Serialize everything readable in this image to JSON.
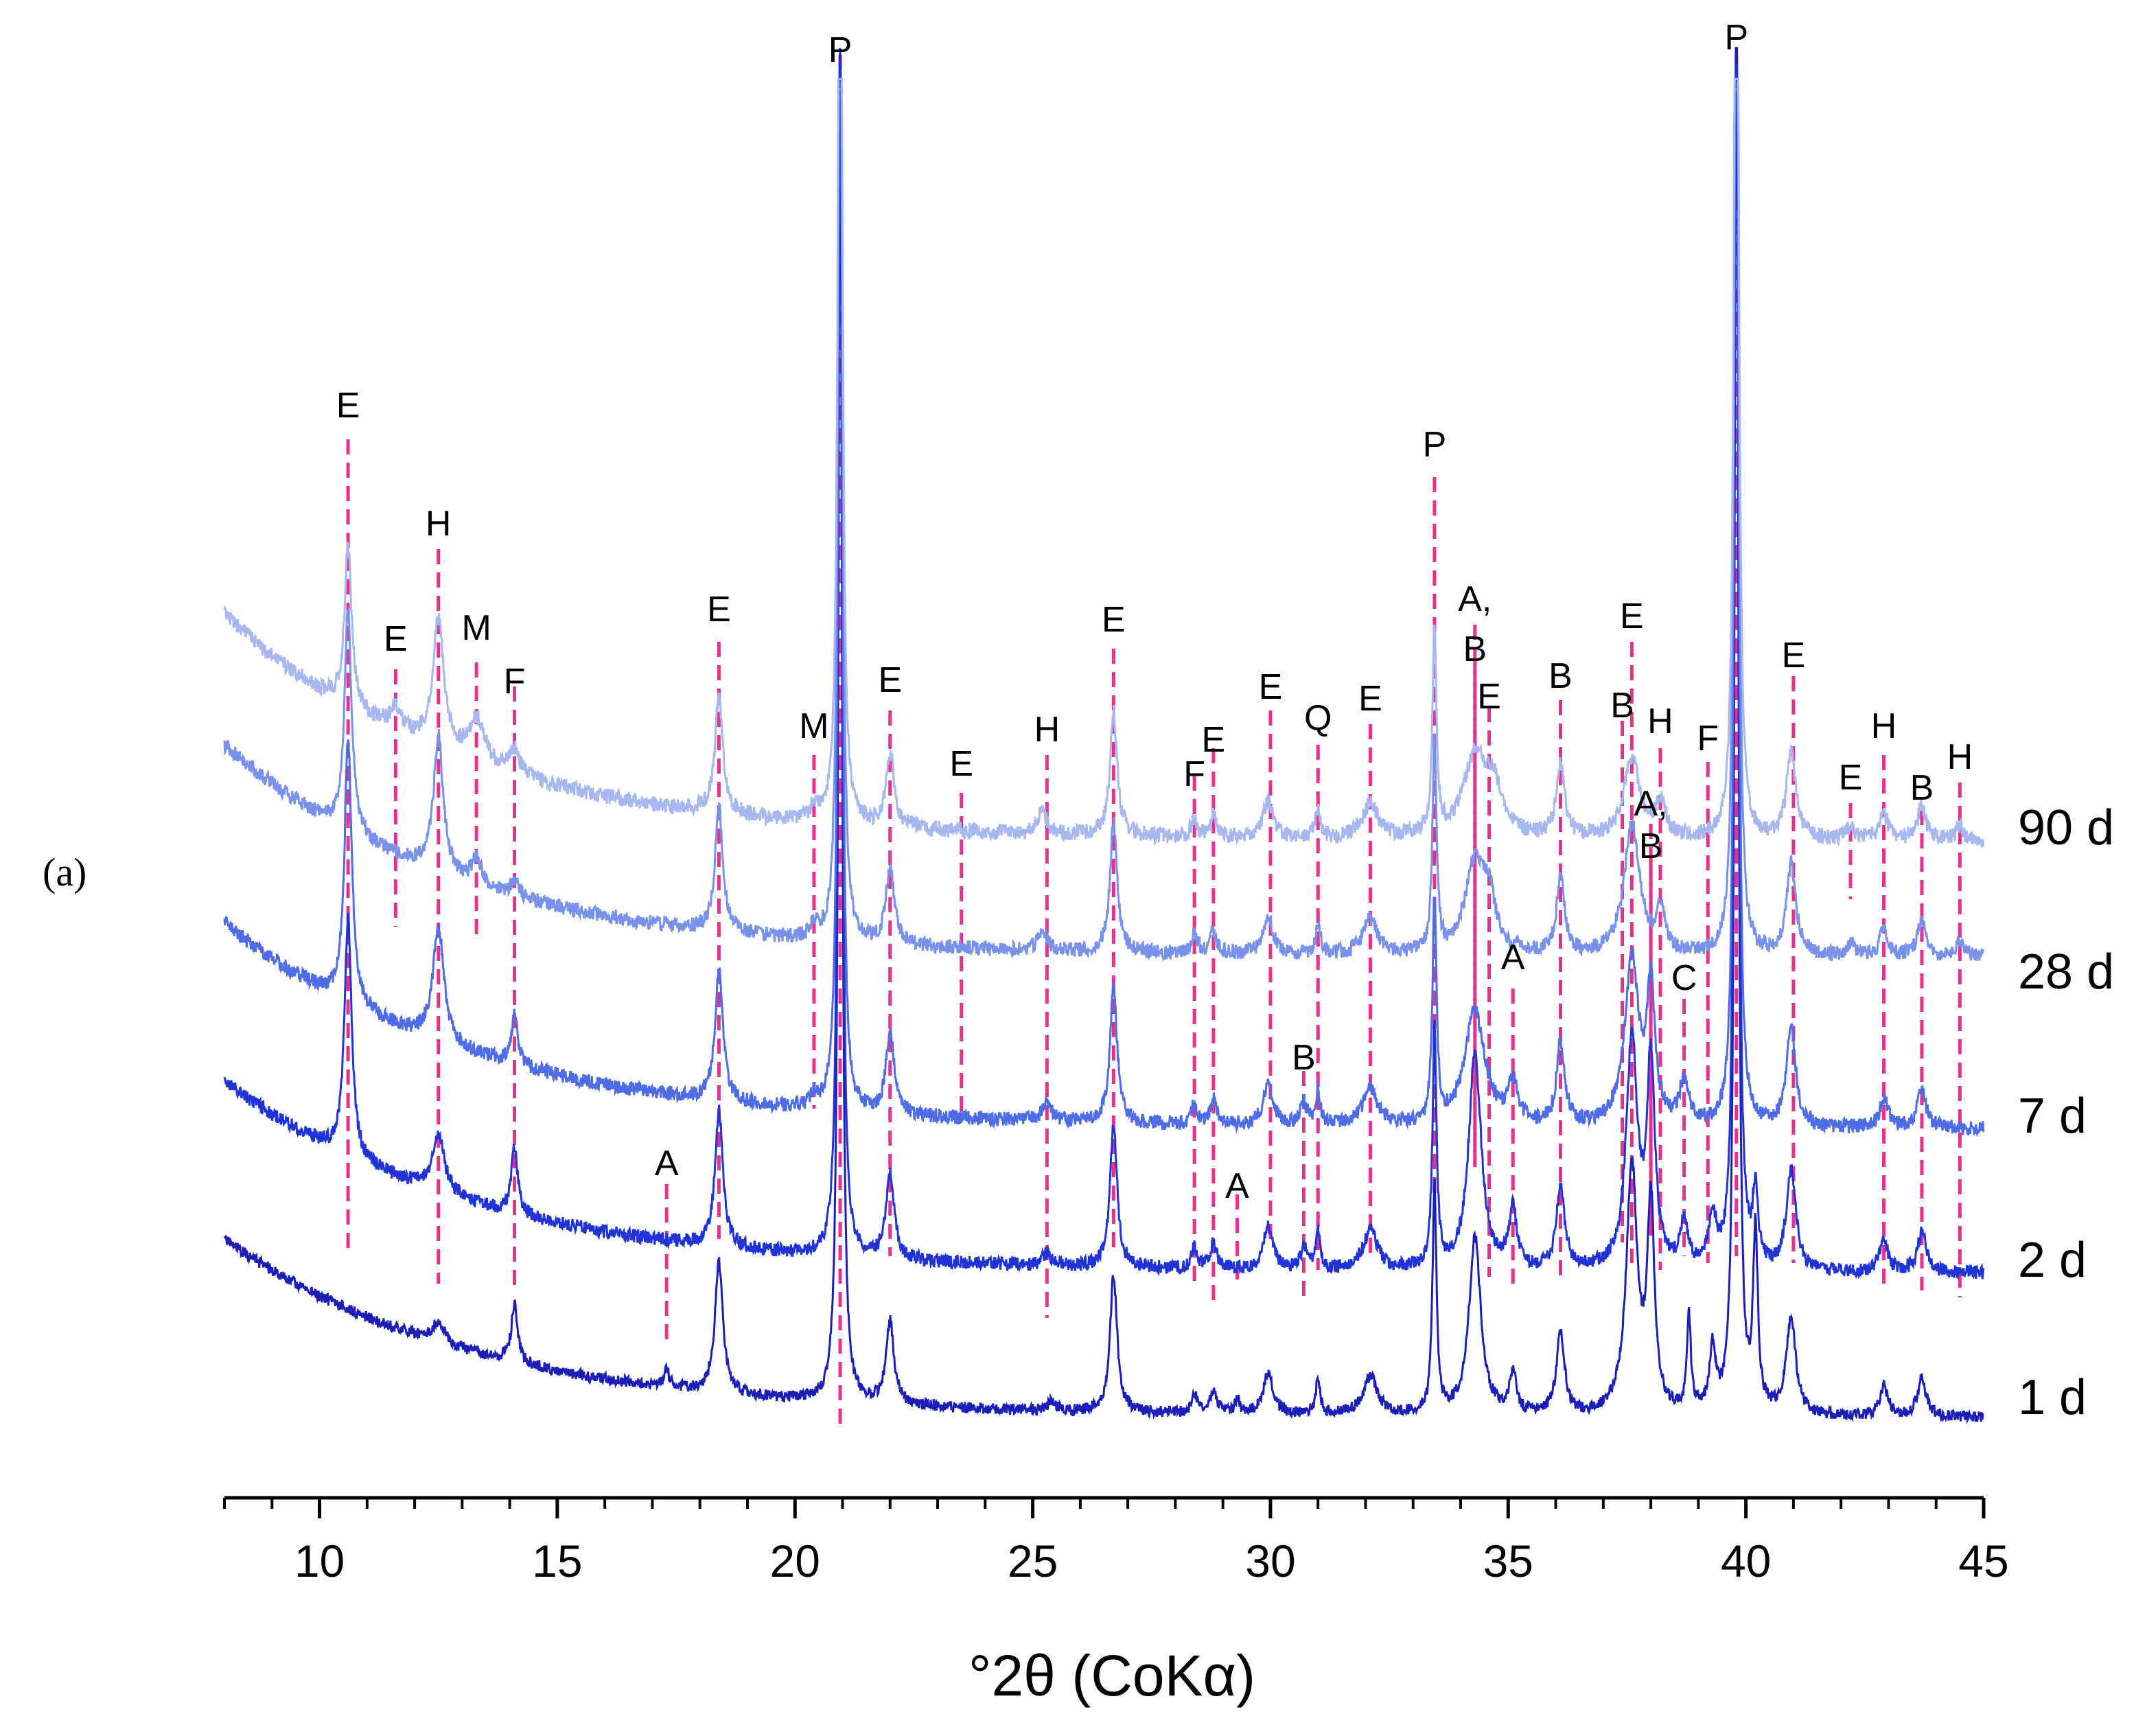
{
  "chart_data": {
    "type": "line",
    "panel_label": "(a)",
    "xlabel": "°2θ (CoKα)",
    "ylabel": "",
    "xlim": [
      8,
      45
    ],
    "x_ticks": [
      10,
      15,
      20,
      25,
      30,
      35,
      40,
      45
    ],
    "grid": false,
    "colors": {
      "marker_line": "#e8308c",
      "axis": "#000000"
    },
    "series": [
      {
        "name": "1 d",
        "color": "#1b1fb8",
        "seed": 11,
        "noise": 0.9
      },
      {
        "name": "2 d",
        "color": "#1f33d6",
        "seed": 23,
        "noise": 1.1
      },
      {
        "name": "7 d",
        "color": "#4d6ce6",
        "seed": 37,
        "noise": 1.2
      },
      {
        "name": "28 d",
        "color": "#7891ea",
        "seed": 41,
        "noise": 1.2
      },
      {
        "name": "90 d",
        "color": "#a7b8f0",
        "seed": 53,
        "noise": 1.3
      }
    ],
    "peak_markers": [
      {
        "label": "E",
        "x": 10.6
      },
      {
        "label": "E",
        "x": 11.6
      },
      {
        "label": "H",
        "x": 12.5
      },
      {
        "label": "M",
        "x": 13.3
      },
      {
        "label": "F",
        "x": 14.1
      },
      {
        "label": "A",
        "x": 17.3
      },
      {
        "label": "E",
        "x": 18.4
      },
      {
        "label": "M",
        "x": 20.4
      },
      {
        "label": "P",
        "x": 20.95
      },
      {
        "label": "E",
        "x": 22.0
      },
      {
        "label": "E",
        "x": 23.5
      },
      {
        "label": "H",
        "x": 25.3
      },
      {
        "label": "E",
        "x": 26.7
      },
      {
        "label": "F",
        "x": 28.4
      },
      {
        "label": "E",
        "x": 28.8
      },
      {
        "label": "A",
        "x": 29.3
      },
      {
        "label": "B",
        "x": 30.7
      },
      {
        "label": "E",
        "x": 30.0
      },
      {
        "label": "Q",
        "x": 31.0
      },
      {
        "label": "E",
        "x": 32.1
      },
      {
        "label": "P",
        "x": 33.45
      },
      {
        "label": "A,",
        "x": 34.3
      },
      {
        "label": "B",
        "x": 34.3
      },
      {
        "label": "E",
        "x": 34.6
      },
      {
        "label": "A",
        "x": 35.1
      },
      {
        "label": "B",
        "x": 36.1
      },
      {
        "label": "B",
        "x": 37.4
      },
      {
        "label": "E",
        "x": 37.6
      },
      {
        "label": "H",
        "x": 38.2
      },
      {
        "label": "A,",
        "x": 38.0
      },
      {
        "label": "B",
        "x": 38.0
      },
      {
        "label": "C",
        "x": 38.7
      },
      {
        "label": "F",
        "x": 39.2
      },
      {
        "label": "P",
        "x": 39.8
      },
      {
        "label": "E",
        "x": 41.0
      },
      {
        "label": "E",
        "x": 42.2
      },
      {
        "label": "H",
        "x": 42.9
      },
      {
        "label": "B",
        "x": 43.7
      },
      {
        "label": "H",
        "x": 44.5
      }
    ]
  }
}
